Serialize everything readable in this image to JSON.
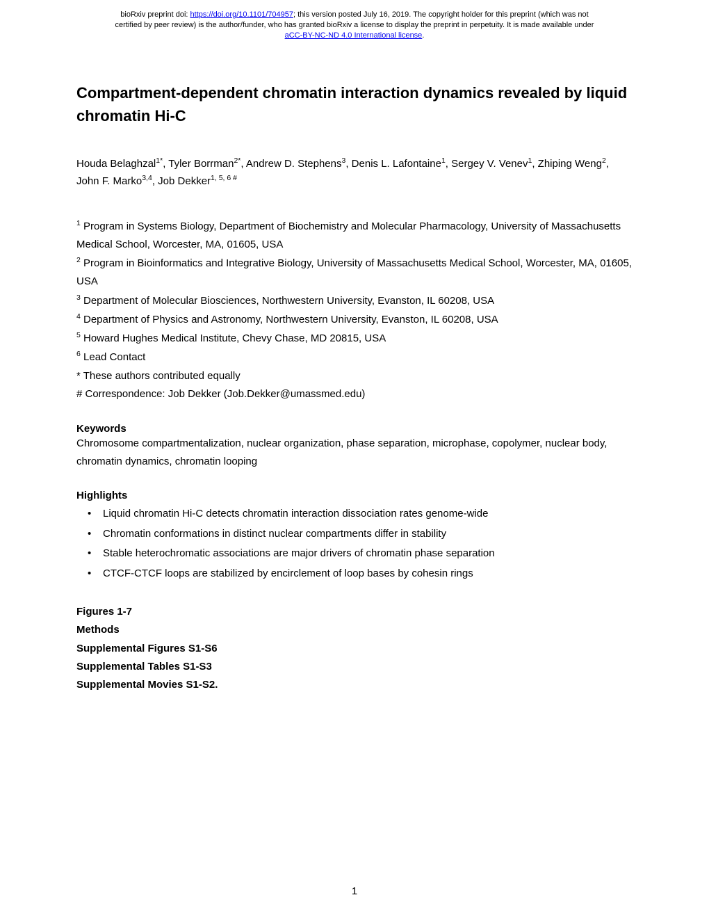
{
  "header": {
    "prefix": "bioRxiv preprint doi: ",
    "doi_url": "https://doi.org/10.1101/704957",
    "line1_rest": "; this version posted July 16, 2019. The copyright holder for this preprint (which was not",
    "line2": "certified by peer review) is the author/funder, who has granted bioRxiv a license to display the preprint in perpetuity. It is made available under",
    "license_link": "aCC-BY-NC-ND 4.0 International license",
    "license_suffix": "."
  },
  "title": "Compartment-dependent chromatin interaction dynamics revealed by liquid chromatin Hi-C",
  "authors_html": "Houda Belaghzal<sup>1*</sup>, Tyler Borrman<sup>2*</sup>, Andrew D. Stephens<sup>3</sup>, Denis L. Lafontaine<sup>1</sup>, Sergey V. Venev<sup>1</sup>, Zhiping Weng<sup>2</sup>, John F. Marko<sup>3,4</sup>, Job Dekker<sup>1, 5, 6 #</sup>",
  "affiliations": [
    "<sup>1</sup> Program in Systems Biology, Department of Biochemistry and Molecular Pharmacology, University of Massachusetts Medical School, Worcester, MA, 01605, USA",
    "<sup>2</sup> Program in Bioinformatics and Integrative Biology, University of Massachusetts Medical School, Worcester, MA, 01605, USA",
    "<sup>3</sup> Department of Molecular Biosciences, Northwestern University, Evanston, IL 60208, USA",
    "<sup>4</sup> Department of Physics and Astronomy, Northwestern University, Evanston, IL 60208, USA",
    "<sup>5</sup> Howard Hughes Medical Institute, Chevy Chase, MD 20815, USA",
    "<sup>6</sup> Lead Contact",
    "* These authors contributed equally",
    "# Correspondence: Job Dekker (Job.Dekker@umassmed.edu)"
  ],
  "keywords_heading": "Keywords",
  "keywords_text": "Chromosome compartmentalization, nuclear organization, phase separation, microphase, copolymer, nuclear body, chromatin dynamics, chromatin looping",
  "highlights_heading": "Highlights",
  "highlights": [
    "Liquid chromatin Hi-C detects chromatin interaction dissociation rates genome-wide",
    "Chromatin conformations in distinct nuclear compartments differ in stability",
    "Stable heterochromatic associations are major drivers of chromatin phase separation",
    "CTCF-CTCF loops are stabilized by encirclement of loop bases by cohesin rings"
  ],
  "materials": [
    "Figures 1-7",
    "Methods",
    "Supplemental Figures S1-S6",
    "Supplemental Tables S1-S3",
    "Supplemental Movies S1-S2."
  ],
  "page_number": "1",
  "colors": {
    "link": "#0000ee",
    "text": "#000000",
    "background": "#ffffff"
  }
}
